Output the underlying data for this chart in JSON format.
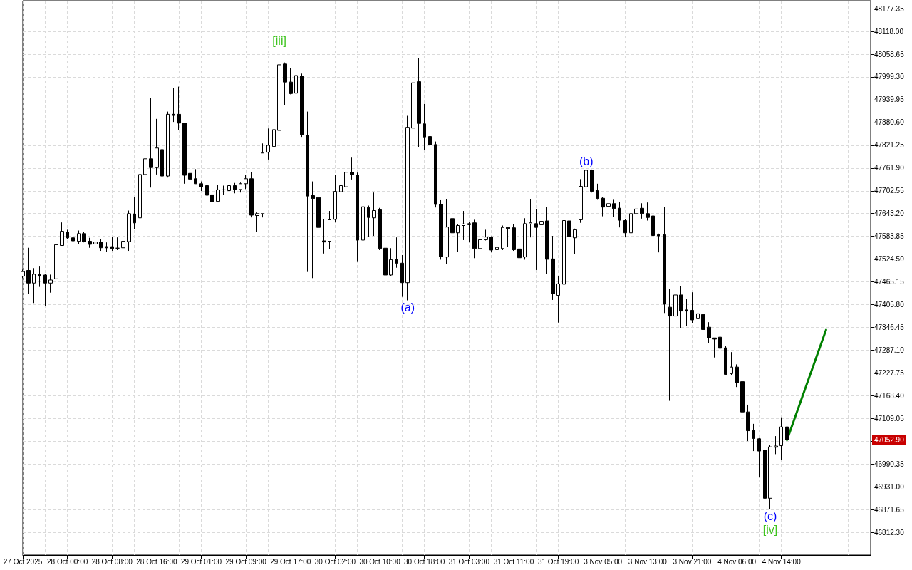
{
  "chart_data": {
    "type": "candlestick",
    "categories": [
      "27 Oct 2025",
      null,
      null,
      null,
      null,
      null,
      null,
      null,
      "28 Oct 00:00",
      null,
      null,
      null,
      null,
      null,
      null,
      null,
      "28 Oct 08:00",
      null,
      null,
      null,
      null,
      null,
      null,
      null,
      "28 Oct 16:00",
      null,
      null,
      null,
      null,
      null,
      null,
      null,
      "29 Oct 01:00",
      null,
      null,
      null,
      null,
      null,
      null,
      null,
      "29 Oct 09:00",
      null,
      null,
      null,
      null,
      null,
      null,
      null,
      "29 Oct 17:00",
      null,
      null,
      null,
      null,
      null,
      null,
      null,
      "30 Oct 02:00",
      null,
      null,
      null,
      null,
      null,
      null,
      null,
      "30 Oct 10:00",
      null,
      null,
      null,
      null,
      null,
      null,
      null,
      "30 Oct 18:00",
      null,
      null,
      null,
      null,
      null,
      null,
      null,
      "31 Oct 03:00",
      null,
      null,
      null,
      null,
      null,
      null,
      null,
      "31 Oct 11:00",
      null,
      null,
      null,
      null,
      null,
      null,
      null,
      "31 Oct 19:00",
      null,
      null,
      null,
      null,
      null,
      null,
      null,
      "3 Nov 05:00",
      null,
      null,
      null,
      null,
      null,
      null,
      null,
      "3 Nov 13:00",
      null,
      null,
      null,
      null,
      null,
      null,
      null,
      "3 Nov 21:00",
      null,
      null,
      null,
      null,
      null,
      null,
      null,
      "4 Nov 06:00",
      null,
      null,
      null,
      null,
      null,
      null,
      null,
      "4 Nov 14:00",
      null,
      null,
      null,
      null,
      null,
      null,
      null,
      null,
      null,
      null,
      null,
      null,
      null,
      null,
      null,
      null
    ],
    "ylim": [
      46753,
      48198
    ],
    "yticks": [
      {
        "value": 46812.3,
        "label": "46812.30"
      },
      {
        "value": 46871.65,
        "label": "46871.65"
      },
      {
        "value": 46931,
        "label": "46931.00"
      },
      {
        "value": 46990.35,
        "label": "46990.35"
      },
      {
        "value": 47049.7,
        "label": null
      },
      {
        "value": 47109.05,
        "label": "47109.05"
      },
      {
        "value": 47168.4,
        "label": "47168.40"
      },
      {
        "value": 47227.75,
        "label": "47227.75"
      },
      {
        "value": 47287.1,
        "label": "47287.10"
      },
      {
        "value": 47346.45,
        "label": "47346.45"
      },
      {
        "value": 47405.8,
        "label": "47405.80"
      },
      {
        "value": 47465.15,
        "label": "47465.15"
      },
      {
        "value": 47524.5,
        "label": "47524.50"
      },
      {
        "value": 47583.85,
        "label": "47583.85"
      },
      {
        "value": 47643.2,
        "label": "47643.20"
      },
      {
        "value": 47702.55,
        "label": "47702.55"
      },
      {
        "value": 47761.9,
        "label": "47761.90"
      },
      {
        "value": 47821.25,
        "label": "47821.25"
      },
      {
        "value": 47880.6,
        "label": "47880.60"
      },
      {
        "value": 47939.95,
        "label": "47939.95"
      },
      {
        "value": 47999.3,
        "label": "47999.30"
      },
      {
        "value": 48058.65,
        "label": "48058.65"
      },
      {
        "value": 48118,
        "label": "48118.00"
      },
      {
        "value": 48177.35,
        "label": "48177.35"
      }
    ],
    "grid": true,
    "series": [
      {
        "color": "#000000",
        "ohlc": [
          [
            47480,
            47497,
            47475,
            47492
          ],
          [
            47495,
            47554,
            47433,
            47462
          ],
          [
            47462,
            47501,
            47410,
            47485
          ],
          [
            47484,
            47505,
            47452,
            47480
          ],
          [
            47483,
            47486,
            47402,
            47462
          ],
          [
            47462,
            47484,
            47437,
            47470
          ],
          [
            47473,
            47590,
            47462,
            47562
          ],
          [
            47560,
            47620,
            47560,
            47597
          ],
          [
            47595,
            47601,
            47577,
            47580
          ],
          [
            47580,
            47616,
            47567,
            47572
          ],
          [
            47571,
            47599,
            47564,
            47591
          ],
          [
            47591,
            47595,
            47568,
            47570
          ],
          [
            47571,
            47580,
            47554,
            47563
          ],
          [
            47564,
            47580,
            47554,
            47569
          ],
          [
            47569,
            47577,
            47546,
            47554
          ],
          [
            47557,
            47568,
            47543,
            47554
          ],
          [
            47557,
            47583,
            47546,
            47552
          ],
          [
            47553,
            47581,
            47548,
            47553
          ],
          [
            47554,
            47579,
            47541,
            47571
          ],
          [
            47570,
            47651,
            47546,
            47643
          ],
          [
            47642,
            47687,
            47603,
            47619
          ],
          [
            47632,
            47752,
            47632,
            47745
          ],
          [
            47745,
            47803,
            47745,
            47786
          ],
          [
            47786,
            47944,
            47711,
            47763
          ],
          [
            47763,
            47890,
            47745,
            47814
          ],
          [
            47810,
            47853,
            47711,
            47741
          ],
          [
            47741,
            47909,
            47737,
            47902
          ],
          [
            47902,
            47971,
            47882,
            47899
          ],
          [
            47902,
            47974,
            47861,
            47879
          ],
          [
            47879,
            47879,
            47721,
            47743
          ],
          [
            47748,
            47772,
            47682,
            47733
          ],
          [
            47734,
            47759,
            47721,
            47721
          ],
          [
            47721,
            47727,
            47702,
            47713
          ],
          [
            47716,
            47726,
            47682,
            47691
          ],
          [
            47692,
            47718,
            47672,
            47674
          ],
          [
            47675,
            47718,
            47675,
            47705
          ],
          [
            47705,
            47716,
            47692,
            47705
          ],
          [
            47703,
            47719,
            47687,
            47716
          ],
          [
            47716,
            47723,
            47696,
            47706
          ],
          [
            47706,
            47724,
            47698,
            47721
          ],
          [
            47721,
            47744,
            47707,
            47734
          ],
          [
            47734,
            47751,
            47633,
            47639
          ],
          [
            47638,
            47646,
            47596,
            47643
          ],
          [
            47643,
            47826,
            47633,
            47801
          ],
          [
            47803,
            47865,
            47784,
            47821
          ],
          [
            47818,
            47874,
            47798,
            47862
          ],
          [
            47860,
            48075,
            47811,
            48031
          ],
          [
            48033,
            48037,
            47926,
            47986
          ],
          [
            47986,
            48022,
            47954,
            47956
          ],
          [
            47957,
            48050,
            47943,
            48003
          ],
          [
            48001,
            48008,
            47843,
            47849
          ],
          [
            47847,
            47909,
            47491,
            47689
          ],
          [
            47690,
            47727,
            47475,
            47682
          ],
          [
            47685,
            47735,
            47522,
            47607
          ],
          [
            47572,
            47629,
            47539,
            47569
          ],
          [
            47571,
            47650,
            47550,
            47627
          ],
          [
            47628,
            47744,
            47620,
            47701
          ],
          [
            47700,
            47737,
            47661,
            47716
          ],
          [
            47713,
            47796,
            47708,
            47751
          ],
          [
            47751,
            47789,
            47732,
            47745
          ],
          [
            47743,
            47750,
            47517,
            47574
          ],
          [
            47574,
            47705,
            47565,
            47661
          ],
          [
            47659,
            47664,
            47583,
            47633
          ],
          [
            47632,
            47698,
            47585,
            47651
          ],
          [
            47653,
            47658,
            47548,
            47552
          ],
          [
            47553,
            47574,
            47465,
            47483
          ],
          [
            47483,
            47553,
            47481,
            47523
          ],
          [
            47523,
            47581,
            47502,
            47514
          ],
          [
            47514,
            47535,
            47426,
            47463
          ],
          [
            47463,
            47898,
            47417,
            47868
          ],
          [
            47866,
            48025,
            47809,
            47984
          ],
          [
            47987,
            48048,
            47817,
            47878
          ],
          [
            47877,
            47929,
            47809,
            47843
          ],
          [
            47844,
            47844,
            47746,
            47822
          ],
          [
            47823,
            47831,
            47659,
            47667
          ],
          [
            47667,
            47678,
            47523,
            47531
          ],
          [
            47530,
            47681,
            47511,
            47608
          ],
          [
            47630,
            47633,
            47570,
            47593
          ],
          [
            47593,
            47616,
            47543,
            47612
          ],
          [
            47612,
            47650,
            47574,
            47616
          ],
          [
            47614,
            47621,
            47568,
            47617
          ],
          [
            47619,
            47627,
            47527,
            47552
          ],
          [
            47552,
            47579,
            47529,
            47575
          ],
          [
            47575,
            47601,
            47573,
            47582
          ],
          [
            47582,
            47584,
            47542,
            47548
          ],
          [
            47549,
            47588,
            47547,
            47555
          ],
          [
            47552,
            47612,
            47548,
            47607
          ],
          [
            47607,
            47609,
            47557,
            47604
          ],
          [
            47606,
            47616,
            47546,
            47549
          ],
          [
            47551,
            47554,
            47493,
            47528
          ],
          [
            47530,
            47631,
            47523,
            47617
          ],
          [
            47616,
            47681,
            47581,
            47619
          ],
          [
            47617,
            47655,
            47496,
            47607
          ],
          [
            47614,
            47688,
            47505,
            47623
          ],
          [
            47624,
            47661,
            47486,
            47524
          ],
          [
            47525,
            47585,
            47418,
            47434
          ],
          [
            47430,
            47480,
            47359,
            47460
          ],
          [
            47459,
            47632,
            47455,
            47625
          ],
          [
            47624,
            47735,
            47583,
            47583
          ],
          [
            47580,
            47604,
            47537,
            47601
          ],
          [
            47627,
            47733,
            47619,
            47714
          ],
          [
            47713,
            47761,
            47709,
            47756
          ],
          [
            47756,
            47758,
            47698,
            47701
          ],
          [
            47703,
            47721,
            47679,
            47682
          ],
          [
            47683,
            47686,
            47636,
            47660
          ],
          [
            47662,
            47679,
            47645,
            47669
          ],
          [
            47669,
            47679,
            47634,
            47656
          ],
          [
            47657,
            47673,
            47607,
            47626
          ],
          [
            47625,
            47628,
            47583,
            47593
          ],
          [
            47593,
            47659,
            47580,
            47643
          ],
          [
            47643,
            47714,
            47641,
            47655
          ],
          [
            47657,
            47670,
            47630,
            47643
          ],
          [
            47643,
            47672,
            47625,
            47633
          ],
          [
            47637,
            47647,
            47583,
            47586
          ],
          [
            47588,
            47591,
            47542,
            47585
          ],
          [
            47588,
            47661,
            47384,
            47407
          ],
          [
            47399,
            47447,
            47155,
            47376
          ],
          [
            47376,
            47462,
            47350,
            47431
          ],
          [
            47431,
            47454,
            47344,
            47389
          ],
          [
            47392,
            47420,
            47350,
            47389
          ],
          [
            47391,
            47438,
            47357,
            47366
          ],
          [
            47369,
            47395,
            47315,
            47382
          ],
          [
            47380,
            47380,
            47326,
            47341
          ],
          [
            47347,
            47360,
            47305,
            47319
          ],
          [
            47319,
            47319,
            47268,
            47316
          ],
          [
            47321,
            47321,
            47270,
            47292
          ],
          [
            47293,
            47298,
            47224,
            47224
          ],
          [
            47226,
            47282,
            47222,
            47243
          ],
          [
            47243,
            47250,
            47191,
            47202
          ],
          [
            47205,
            47207,
            47107,
            47126
          ],
          [
            47126,
            47145,
            47050,
            47077
          ],
          [
            47077,
            47095,
            47024,
            47057
          ],
          [
            47056,
            47058,
            46955,
            47024
          ],
          [
            47026,
            47036,
            46896,
            46901
          ],
          [
            46901,
            47039,
            46873,
            47035
          ],
          [
            47034,
            47063,
            47016,
            47037
          ],
          [
            47038,
            47112,
            47001,
            47087
          ],
          [
            47087,
            47099,
            47049,
            47053
          ],
          null,
          null,
          null,
          null,
          null,
          null,
          null,
          null,
          null,
          null,
          null,
          null,
          null,
          null,
          null
        ]
      },
      {
        "type": "line",
        "color": "#008000",
        "values": [
          null,
          null,
          null,
          null,
          null,
          null,
          null,
          null,
          null,
          null,
          null,
          null,
          null,
          null,
          null,
          null,
          null,
          null,
          null,
          null,
          null,
          null,
          null,
          null,
          null,
          null,
          null,
          null,
          null,
          null,
          null,
          null,
          null,
          null,
          null,
          null,
          null,
          null,
          null,
          null,
          null,
          null,
          null,
          null,
          null,
          null,
          null,
          null,
          null,
          null,
          null,
          null,
          null,
          null,
          null,
          null,
          null,
          null,
          null,
          null,
          null,
          null,
          null,
          null,
          null,
          null,
          null,
          null,
          null,
          null,
          null,
          null,
          null,
          null,
          null,
          null,
          null,
          null,
          null,
          null,
          null,
          null,
          null,
          null,
          null,
          null,
          null,
          null,
          null,
          null,
          null,
          null,
          null,
          null,
          null,
          null,
          null,
          null,
          null,
          null,
          null,
          null,
          null,
          null,
          null,
          null,
          null,
          null,
          null,
          null,
          null,
          null,
          null,
          null,
          null,
          null,
          null,
          null,
          null,
          null,
          null,
          null,
          null,
          null,
          null,
          null,
          null,
          null,
          null,
          null,
          null,
          null,
          null,
          null,
          null,
          null,
          null,
          47053,
          null,
          null,
          null,
          null,
          null,
          null,
          47340,
          null,
          null,
          null,
          null,
          null,
          null,
          null,
          null
        ]
      }
    ],
    "ref_lines": [
      {
        "axis": "y",
        "value": 47052.9,
        "label": "47052.90",
        "color": "#c80000"
      }
    ],
    "annotations": [
      {
        "text": "[iii]",
        "y": 48075
      },
      {
        "text": "(a)",
        "y": 47417
      },
      {
        "text": "(b)",
        "y": 47761
      },
      {
        "text": "(c)",
        "y": 46873
      },
      {
        "text": "[iv]",
        "y": 46873
      }
    ]
  }
}
